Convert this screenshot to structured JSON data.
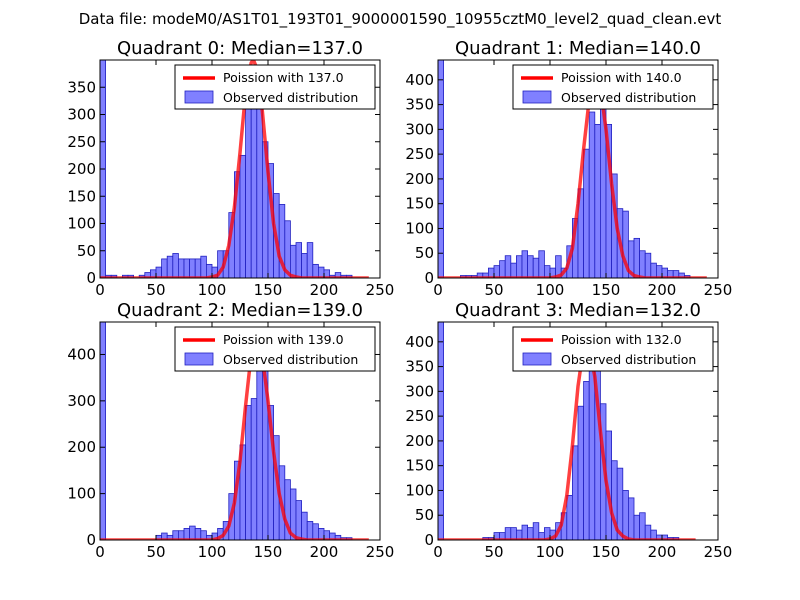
{
  "figure_title": "Data file: modeM0/AS1T01_193T01_9000001590_10955cztM0_level2_quad_clean.evt",
  "colors": {
    "bar_fill": "#8080ff",
    "bar_edge": "#2020c0",
    "poisson_line": "#ff0000"
  },
  "chart_data": [
    {
      "type": "bar",
      "title": "Quadrant 0: Median=137.0",
      "xlim": [
        0,
        250
      ],
      "ylim": [
        0,
        400
      ],
      "xticks": [
        "0",
        "50",
        "100",
        "150",
        "200",
        "250"
      ],
      "yticks": [
        "0",
        "50",
        "100",
        "150",
        "200",
        "250",
        "300",
        "350"
      ],
      "ytick_values": [
        0,
        50,
        100,
        150,
        200,
        250,
        300,
        350
      ],
      "legend": [
        "Poission with 137.0",
        "Observed distribution"
      ],
      "legend_position": "upper right",
      "bin_width": 5,
      "bins": [
        {
          "x": 0,
          "y": 400
        },
        {
          "x": 5,
          "y": 5
        },
        {
          "x": 10,
          "y": 5
        },
        {
          "x": 15,
          "y": 0
        },
        {
          "x": 20,
          "y": 5
        },
        {
          "x": 25,
          "y": 5
        },
        {
          "x": 30,
          "y": 0
        },
        {
          "x": 35,
          "y": 5
        },
        {
          "x": 40,
          "y": 10
        },
        {
          "x": 45,
          "y": 15
        },
        {
          "x": 50,
          "y": 20
        },
        {
          "x": 55,
          "y": 35
        },
        {
          "x": 60,
          "y": 40
        },
        {
          "x": 65,
          "y": 45
        },
        {
          "x": 70,
          "y": 35
        },
        {
          "x": 75,
          "y": 35
        },
        {
          "x": 80,
          "y": 35
        },
        {
          "x": 85,
          "y": 35
        },
        {
          "x": 90,
          "y": 40
        },
        {
          "x": 95,
          "y": 25
        },
        {
          "x": 100,
          "y": 20
        },
        {
          "x": 105,
          "y": 50
        },
        {
          "x": 110,
          "y": 50
        },
        {
          "x": 115,
          "y": 120
        },
        {
          "x": 120,
          "y": 195
        },
        {
          "x": 125,
          "y": 225
        },
        {
          "x": 130,
          "y": 320
        },
        {
          "x": 135,
          "y": 360
        },
        {
          "x": 140,
          "y": 345
        },
        {
          "x": 145,
          "y": 250
        },
        {
          "x": 150,
          "y": 210
        },
        {
          "x": 155,
          "y": 155
        },
        {
          "x": 160,
          "y": 135
        },
        {
          "x": 165,
          "y": 105
        },
        {
          "x": 170,
          "y": 60
        },
        {
          "x": 175,
          "y": 65
        },
        {
          "x": 180,
          "y": 45
        },
        {
          "x": 185,
          "y": 65
        },
        {
          "x": 190,
          "y": 25
        },
        {
          "x": 195,
          "y": 20
        },
        {
          "x": 200,
          "y": 15
        },
        {
          "x": 205,
          "y": 5
        },
        {
          "x": 210,
          "y": 10
        },
        {
          "x": 215,
          "y": 5
        },
        {
          "x": 220,
          "y": 5
        }
      ],
      "poisson": {
        "x": [
          0,
          95,
          100,
          105,
          110,
          115,
          120,
          125,
          130,
          135,
          137,
          140,
          145,
          150,
          155,
          160,
          165,
          170,
          175,
          180,
          240
        ],
        "y": [
          0,
          0,
          2,
          5,
          20,
          60,
          130,
          230,
          340,
          395,
          400,
          385,
          305,
          195,
          100,
          40,
          15,
          5,
          2,
          0,
          0
        ]
      }
    },
    {
      "type": "bar",
      "title": "Quadrant 1: Median=140.0",
      "xlim": [
        0,
        250
      ],
      "ylim": [
        0,
        440
      ],
      "xticks": [
        "0",
        "50",
        "100",
        "150",
        "200",
        "250"
      ],
      "yticks": [
        "0",
        "50",
        "100",
        "150",
        "200",
        "250",
        "300",
        "350",
        "400"
      ],
      "ytick_values": [
        0,
        50,
        100,
        150,
        200,
        250,
        300,
        350,
        400
      ],
      "legend": [
        "Poission with 140.0",
        "Observed distribution"
      ],
      "legend_position": "upper right",
      "bin_width": 5,
      "bins": [
        {
          "x": 0,
          "y": 440
        },
        {
          "x": 5,
          "y": 0
        },
        {
          "x": 10,
          "y": 0
        },
        {
          "x": 15,
          "y": 0
        },
        {
          "x": 20,
          "y": 5
        },
        {
          "x": 25,
          "y": 5
        },
        {
          "x": 30,
          "y": 5
        },
        {
          "x": 35,
          "y": 10
        },
        {
          "x": 40,
          "y": 10
        },
        {
          "x": 45,
          "y": 20
        },
        {
          "x": 50,
          "y": 25
        },
        {
          "x": 55,
          "y": 35
        },
        {
          "x": 60,
          "y": 45
        },
        {
          "x": 65,
          "y": 30
        },
        {
          "x": 70,
          "y": 45
        },
        {
          "x": 75,
          "y": 55
        },
        {
          "x": 80,
          "y": 45
        },
        {
          "x": 85,
          "y": 40
        },
        {
          "x": 90,
          "y": 55
        },
        {
          "x": 95,
          "y": 25
        },
        {
          "x": 100,
          "y": 20
        },
        {
          "x": 105,
          "y": 45
        },
        {
          "x": 110,
          "y": 20
        },
        {
          "x": 115,
          "y": 65
        },
        {
          "x": 120,
          "y": 120
        },
        {
          "x": 125,
          "y": 180
        },
        {
          "x": 130,
          "y": 260
        },
        {
          "x": 135,
          "y": 335
        },
        {
          "x": 140,
          "y": 310
        },
        {
          "x": 145,
          "y": 385
        },
        {
          "x": 150,
          "y": 310
        },
        {
          "x": 155,
          "y": 210
        },
        {
          "x": 160,
          "y": 140
        },
        {
          "x": 165,
          "y": 135
        },
        {
          "x": 170,
          "y": 75
        },
        {
          "x": 175,
          "y": 80
        },
        {
          "x": 180,
          "y": 55
        },
        {
          "x": 185,
          "y": 50
        },
        {
          "x": 190,
          "y": 30
        },
        {
          "x": 195,
          "y": 25
        },
        {
          "x": 200,
          "y": 20
        },
        {
          "x": 205,
          "y": 15
        },
        {
          "x": 210,
          "y": 15
        },
        {
          "x": 215,
          "y": 10
        },
        {
          "x": 220,
          "y": 5
        }
      ],
      "poisson": {
        "x": [
          0,
          100,
          105,
          110,
          115,
          120,
          125,
          130,
          135,
          140,
          145,
          150,
          155,
          160,
          165,
          170,
          175,
          180,
          185,
          240
        ],
        "y": [
          0,
          0,
          2,
          6,
          20,
          60,
          150,
          260,
          360,
          420,
          385,
          300,
          190,
          100,
          45,
          15,
          5,
          2,
          0,
          0
        ]
      }
    },
    {
      "type": "bar",
      "title": "Quadrant 2: Median=139.0",
      "xlim": [
        0,
        250
      ],
      "ylim": [
        0,
        470
      ],
      "xticks": [
        "0",
        "50",
        "100",
        "150",
        "200",
        "250"
      ],
      "yticks": [
        "0",
        "100",
        "200",
        "300",
        "400"
      ],
      "ytick_values": [
        0,
        100,
        200,
        300,
        400
      ],
      "legend": [
        "Poission with 139.0",
        "Observed distribution"
      ],
      "legend_position": "upper right",
      "bin_width": 5,
      "bins": [
        {
          "x": 0,
          "y": 470
        },
        {
          "x": 5,
          "y": 0
        },
        {
          "x": 10,
          "y": 0
        },
        {
          "x": 15,
          "y": 0
        },
        {
          "x": 20,
          "y": 0
        },
        {
          "x": 25,
          "y": 0
        },
        {
          "x": 30,
          "y": 0
        },
        {
          "x": 35,
          "y": 0
        },
        {
          "x": 40,
          "y": 0
        },
        {
          "x": 45,
          "y": 0
        },
        {
          "x": 50,
          "y": 10
        },
        {
          "x": 55,
          "y": 15
        },
        {
          "x": 60,
          "y": 10
        },
        {
          "x": 65,
          "y": 20
        },
        {
          "x": 70,
          "y": 20
        },
        {
          "x": 75,
          "y": 25
        },
        {
          "x": 80,
          "y": 30
        },
        {
          "x": 85,
          "y": 25
        },
        {
          "x": 90,
          "y": 20
        },
        {
          "x": 95,
          "y": 10
        },
        {
          "x": 100,
          "y": 15
        },
        {
          "x": 105,
          "y": 25
        },
        {
          "x": 110,
          "y": 40
        },
        {
          "x": 115,
          "y": 100
        },
        {
          "x": 120,
          "y": 170
        },
        {
          "x": 125,
          "y": 205
        },
        {
          "x": 130,
          "y": 290
        },
        {
          "x": 135,
          "y": 305
        },
        {
          "x": 140,
          "y": 380
        },
        {
          "x": 145,
          "y": 370
        },
        {
          "x": 150,
          "y": 290
        },
        {
          "x": 155,
          "y": 225
        },
        {
          "x": 160,
          "y": 160
        },
        {
          "x": 165,
          "y": 130
        },
        {
          "x": 170,
          "y": 110
        },
        {
          "x": 175,
          "y": 85
        },
        {
          "x": 180,
          "y": 60
        },
        {
          "x": 185,
          "y": 40
        },
        {
          "x": 190,
          "y": 35
        },
        {
          "x": 195,
          "y": 25
        },
        {
          "x": 200,
          "y": 20
        },
        {
          "x": 205,
          "y": 15
        },
        {
          "x": 210,
          "y": 10
        },
        {
          "x": 215,
          "y": 5
        },
        {
          "x": 220,
          "y": 5
        }
      ],
      "poisson": {
        "x": [
          0,
          100,
          105,
          110,
          115,
          120,
          125,
          130,
          135,
          139,
          140,
          145,
          150,
          155,
          160,
          165,
          170,
          175,
          180,
          185,
          240
        ],
        "y": [
          0,
          0,
          3,
          10,
          30,
          80,
          170,
          290,
          400,
          440,
          435,
          395,
          300,
          190,
          100,
          45,
          15,
          5,
          2,
          0,
          0
        ]
      }
    },
    {
      "type": "bar",
      "title": "Quadrant 3: Median=132.0",
      "xlim": [
        0,
        250
      ],
      "ylim": [
        0,
        440
      ],
      "xticks": [
        "0",
        "50",
        "100",
        "150",
        "200",
        "250"
      ],
      "yticks": [
        "0",
        "50",
        "100",
        "150",
        "200",
        "250",
        "300",
        "350",
        "400"
      ],
      "ytick_values": [
        0,
        50,
        100,
        150,
        200,
        250,
        300,
        350,
        400
      ],
      "legend": [
        "Poission with 132.0",
        "Observed distribution"
      ],
      "legend_position": "upper right",
      "bin_width": 5,
      "bins": [
        {
          "x": 0,
          "y": 440
        },
        {
          "x": 5,
          "y": 0
        },
        {
          "x": 10,
          "y": 0
        },
        {
          "x": 15,
          "y": 0
        },
        {
          "x": 20,
          "y": 0
        },
        {
          "x": 25,
          "y": 0
        },
        {
          "x": 30,
          "y": 0
        },
        {
          "x": 35,
          "y": 0
        },
        {
          "x": 40,
          "y": 5
        },
        {
          "x": 45,
          "y": 5
        },
        {
          "x": 50,
          "y": 15
        },
        {
          "x": 55,
          "y": 15
        },
        {
          "x": 60,
          "y": 25
        },
        {
          "x": 65,
          "y": 25
        },
        {
          "x": 70,
          "y": 20
        },
        {
          "x": 75,
          "y": 30
        },
        {
          "x": 80,
          "y": 25
        },
        {
          "x": 85,
          "y": 35
        },
        {
          "x": 90,
          "y": 15
        },
        {
          "x": 95,
          "y": 25
        },
        {
          "x": 100,
          "y": 20
        },
        {
          "x": 105,
          "y": 35
        },
        {
          "x": 110,
          "y": 55
        },
        {
          "x": 115,
          "y": 90
        },
        {
          "x": 120,
          "y": 190
        },
        {
          "x": 125,
          "y": 270
        },
        {
          "x": 130,
          "y": 320
        },
        {
          "x": 135,
          "y": 395
        },
        {
          "x": 140,
          "y": 380
        },
        {
          "x": 145,
          "y": 275
        },
        {
          "x": 150,
          "y": 220
        },
        {
          "x": 155,
          "y": 160
        },
        {
          "x": 160,
          "y": 145
        },
        {
          "x": 165,
          "y": 100
        },
        {
          "x": 170,
          "y": 85
        },
        {
          "x": 175,
          "y": 50
        },
        {
          "x": 180,
          "y": 55
        },
        {
          "x": 185,
          "y": 30
        },
        {
          "x": 190,
          "y": 20
        },
        {
          "x": 195,
          "y": 10
        },
        {
          "x": 200,
          "y": 10
        },
        {
          "x": 205,
          "y": 5
        },
        {
          "x": 210,
          "y": 5
        },
        {
          "x": 215,
          "y": 0
        },
        {
          "x": 220,
          "y": 0
        }
      ],
      "poisson": {
        "x": [
          0,
          95,
          100,
          105,
          110,
          115,
          120,
          125,
          130,
          132,
          135,
          140,
          145,
          150,
          155,
          160,
          165,
          170,
          175,
          230
        ],
        "y": [
          0,
          0,
          2,
          8,
          30,
          90,
          190,
          310,
          390,
          400,
          390,
          330,
          220,
          120,
          55,
          20,
          8,
          2,
          0,
          0
        ]
      }
    }
  ]
}
